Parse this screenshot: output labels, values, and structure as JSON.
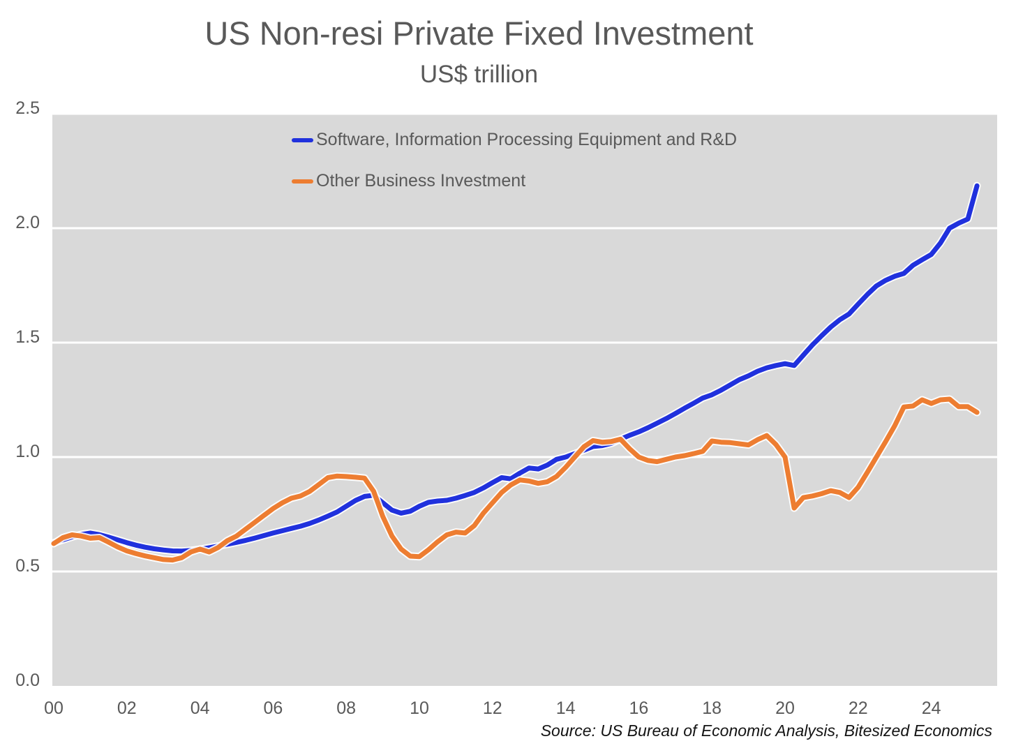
{
  "colors": {
    "plot_background": "#d9d9d9",
    "gridline": "#ffffff",
    "axis_text": "#595959",
    "title_text": "#595959",
    "source_text": "#141414",
    "series_software": "#2031dd",
    "series_other": "#ed7d31"
  },
  "chart_data": {
    "type": "line",
    "title": "US Non-resi Private Fixed Investment",
    "subtitle": "US$ trillion",
    "source_note": "Source: US Bureau of Economic Analysis, Bitesized Economics",
    "xlabel": "",
    "ylabel": "",
    "ylim": [
      0.0,
      2.5
    ],
    "xlim_years": [
      2000.0,
      2025.8
    ],
    "y_ticks": [
      0.0,
      0.5,
      1.0,
      1.5,
      2.0,
      2.5
    ],
    "y_tick_labels": [
      "0.0",
      "0.5",
      "1.0",
      "1.5",
      "2.0",
      "2.5"
    ],
    "y_gridlines": [
      0.5,
      1.0,
      1.5,
      2.0,
      2.5
    ],
    "x_tick_years": [
      2000,
      2002,
      2004,
      2006,
      2008,
      2010,
      2012,
      2014,
      2016,
      2018,
      2020,
      2022,
      2024
    ],
    "x_tick_labels": [
      "00",
      "02",
      "04",
      "06",
      "08",
      "10",
      "12",
      "14",
      "16",
      "18",
      "20",
      "22",
      "24"
    ],
    "grid": "horizontal white gridlines on gray plot area",
    "legend_position": "inside-top-left",
    "x_start_year": 2000.0,
    "x_step_years": 0.25,
    "series": [
      {
        "name": "Software, Information Processing Equipment and R&D",
        "key": "series-software",
        "color": "#2031dd",
        "values": [
          0.625,
          0.638,
          0.651,
          0.662,
          0.668,
          0.661,
          0.65,
          0.638,
          0.626,
          0.615,
          0.606,
          0.599,
          0.594,
          0.59,
          0.589,
          0.592,
          0.597,
          0.604,
          0.611,
          0.619,
          0.627,
          0.636,
          0.646,
          0.657,
          0.668,
          0.678,
          0.688,
          0.698,
          0.71,
          0.725,
          0.742,
          0.76,
          0.785,
          0.81,
          0.828,
          0.833,
          0.8,
          0.768,
          0.755,
          0.763,
          0.785,
          0.802,
          0.808,
          0.811,
          0.82,
          0.832,
          0.845,
          0.865,
          0.888,
          0.91,
          0.905,
          0.93,
          0.952,
          0.948,
          0.965,
          0.99,
          1.0,
          1.015,
          1.03,
          1.046,
          1.05,
          1.06,
          1.078,
          1.095,
          1.11,
          1.128,
          1.148,
          1.168,
          1.19,
          1.213,
          1.235,
          1.258,
          1.272,
          1.292,
          1.315,
          1.338,
          1.355,
          1.375,
          1.39,
          1.4,
          1.408,
          1.4,
          1.445,
          1.49,
          1.53,
          1.568,
          1.6,
          1.625,
          1.668,
          1.71,
          1.748,
          1.772,
          1.79,
          1.802,
          1.838,
          1.862,
          1.885,
          1.935,
          2.0,
          2.022,
          2.04,
          2.185
        ]
      },
      {
        "name": "Other Business Investment",
        "key": "series-other",
        "color": "#ed7d31",
        "values": [
          0.622,
          0.648,
          0.66,
          0.655,
          0.645,
          0.648,
          0.628,
          0.607,
          0.59,
          0.578,
          0.568,
          0.56,
          0.552,
          0.55,
          0.56,
          0.585,
          0.598,
          0.585,
          0.605,
          0.635,
          0.655,
          0.685,
          0.715,
          0.745,
          0.775,
          0.8,
          0.82,
          0.83,
          0.85,
          0.88,
          0.91,
          0.917,
          0.915,
          0.912,
          0.908,
          0.85,
          0.74,
          0.655,
          0.598,
          0.567,
          0.565,
          0.595,
          0.63,
          0.66,
          0.672,
          0.668,
          0.7,
          0.755,
          0.8,
          0.845,
          0.878,
          0.9,
          0.895,
          0.885,
          0.892,
          0.915,
          0.955,
          1.0,
          1.045,
          1.072,
          1.065,
          1.068,
          1.078,
          1.036,
          1.0,
          0.985,
          0.98,
          0.99,
          1.0,
          1.006,
          1.015,
          1.025,
          1.07,
          1.065,
          1.063,
          1.058,
          1.053,
          1.076,
          1.094,
          1.055,
          1.0,
          0.777,
          0.823,
          0.83,
          0.84,
          0.853,
          0.845,
          0.823,
          0.868,
          0.933,
          1.0,
          1.067,
          1.137,
          1.219,
          1.223,
          1.25,
          1.234,
          1.25,
          1.253,
          1.22,
          1.22,
          1.195
        ]
      }
    ]
  }
}
